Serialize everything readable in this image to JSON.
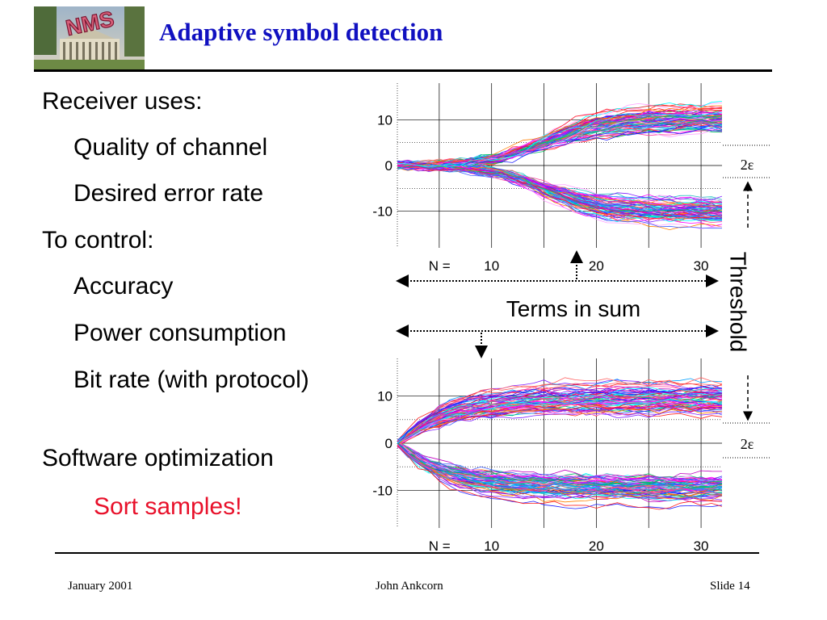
{
  "slide": {
    "title": "Adaptive symbol detection",
    "logo_text": "NMS"
  },
  "bullets": [
    {
      "level": 1,
      "text": "Receiver uses:"
    },
    {
      "level": 2,
      "text": "Quality of channel"
    },
    {
      "level": 2,
      "text": "Desired error rate"
    },
    {
      "level": 1,
      "text": "To control:"
    },
    {
      "level": 2,
      "text": "Accuracy"
    },
    {
      "level": 2,
      "text": "Power consumption"
    },
    {
      "level": 2,
      "text": "Bit rate (with protocol)"
    },
    {
      "level": 1,
      "text": "Software optimization"
    },
    {
      "level": 3,
      "text": "Sort samples!"
    }
  ],
  "annotations": {
    "terms_in_sum": "Terms in sum",
    "threshold": "Threshold",
    "epsilon_top": "2ε",
    "epsilon_bottom": "2ε"
  },
  "chart_data": [
    {
      "type": "line",
      "title": "",
      "xlabel": "",
      "ylabel": "",
      "x_prefix_label": "N  =",
      "x_ticks": [
        "10",
        "20",
        "30"
      ],
      "x_tick_values": [
        10,
        20,
        30
      ],
      "xlim": [
        1,
        32
      ],
      "y_ticks": [
        "10",
        "0",
        "-10"
      ],
      "y_tick_values": [
        10,
        0,
        -10
      ],
      "ylim": [
        -18,
        18
      ],
      "series_count": 150,
      "description_of_trend": "many sample trajectories starting near 0, diverging into two bundles near +10 and -10 after about N=12",
      "threshold_lines": [
        5,
        -5
      ],
      "grid": true
    },
    {
      "type": "line",
      "title": "",
      "xlabel": "",
      "ylabel": "",
      "x_prefix_label": "N  =",
      "x_ticks": [
        "10",
        "20",
        "30"
      ],
      "x_tick_values": [
        10,
        20,
        30
      ],
      "xlim": [
        1,
        32
      ],
      "y_ticks": [
        "10",
        "0",
        "-10"
      ],
      "y_tick_values": [
        10,
        0,
        -10
      ],
      "ylim": [
        -18,
        18
      ],
      "series_count": 150,
      "threshold_lines": [
        5,
        -5
      ],
      "grid": true
    }
  ],
  "footer": {
    "date": "January 2001",
    "author": "John Ankcorn",
    "slide_number": "Slide 14"
  },
  "colors": {
    "title": "#1010c0",
    "highlight": "#e8102a"
  }
}
